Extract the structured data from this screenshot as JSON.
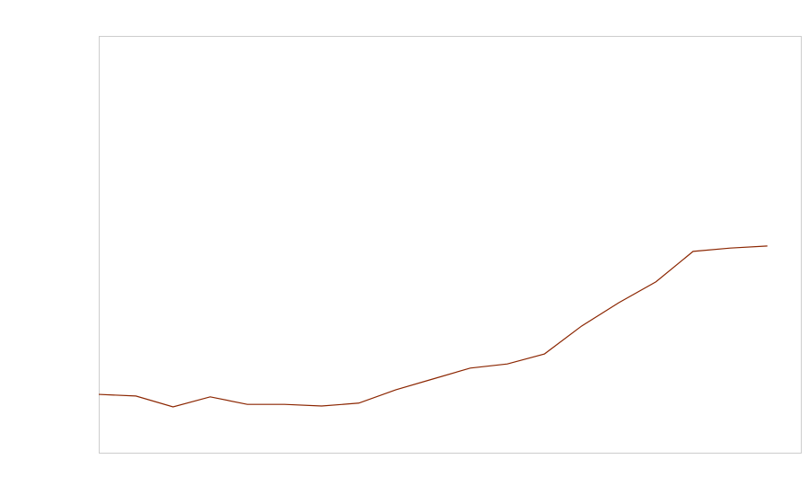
{
  "chart_data": {
    "type": "line",
    "x": [
      0,
      1,
      2,
      3,
      4,
      5,
      6,
      7,
      8,
      9,
      10,
      11,
      12,
      13,
      14,
      15,
      16,
      17,
      18
    ],
    "series": [
      {
        "color": "#8b2500",
        "values": [
          14.0,
          13.6,
          11.0,
          13.4,
          11.6,
          11.6,
          11.2,
          11.9,
          15.1,
          17.7,
          20.3,
          21.3,
          23.7,
          30.4,
          36.0,
          41.0,
          48.3,
          49.1,
          49.6
        ]
      }
    ],
    "xlim": [
      0,
      18.9
    ],
    "ylim": [
      0,
      100
    ]
  }
}
